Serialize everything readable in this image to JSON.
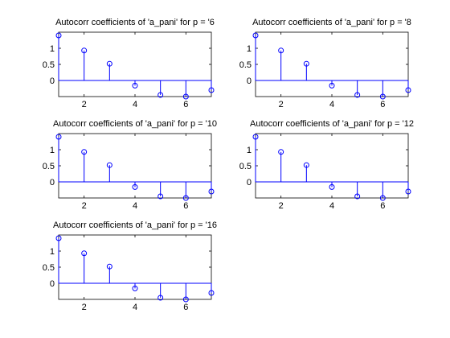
{
  "chart_data": [
    {
      "type": "stem",
      "title": "Autocorr coefficients of 'a_pani' for p = '6",
      "x": [
        1,
        2,
        3,
        4,
        5,
        6,
        7
      ],
      "values": [
        1.4,
        0.93,
        0.52,
        -0.16,
        -0.45,
        -0.5,
        -0.3
      ],
      "xlim": [
        1,
        7
      ],
      "ylim": [
        -0.5,
        1.5
      ],
      "xticks": [
        "2",
        "4",
        "6"
      ],
      "yticks": [
        "0",
        "0.5",
        "1"
      ],
      "xlabel": "",
      "ylabel": "",
      "grid": false,
      "marker": "circle",
      "color": "#0000ff"
    },
    {
      "type": "stem",
      "title": "Autocorr coefficients of 'a_pani' for p = '8",
      "x": [
        1,
        2,
        3,
        4,
        5,
        6,
        7
      ],
      "values": [
        1.4,
        0.93,
        0.52,
        -0.16,
        -0.45,
        -0.5,
        -0.3
      ],
      "xlim": [
        1,
        7
      ],
      "ylim": [
        -0.5,
        1.5
      ],
      "xticks": [
        "2",
        "4",
        "6"
      ],
      "yticks": [
        "0",
        "0.5",
        "1"
      ],
      "xlabel": "",
      "ylabel": "",
      "grid": false,
      "marker": "circle",
      "color": "#0000ff"
    },
    {
      "type": "stem",
      "title": "Autocorr coefficients of 'a_pani' for p = '10",
      "x": [
        1,
        2,
        3,
        4,
        5,
        6,
        7
      ],
      "values": [
        1.4,
        0.93,
        0.52,
        -0.16,
        -0.45,
        -0.5,
        -0.3
      ],
      "xlim": [
        1,
        7
      ],
      "ylim": [
        -0.5,
        1.5
      ],
      "xticks": [
        "2",
        "4",
        "6"
      ],
      "yticks": [
        "0",
        "0.5",
        "1"
      ],
      "xlabel": "",
      "ylabel": "",
      "grid": false,
      "marker": "circle",
      "color": "#0000ff"
    },
    {
      "type": "stem",
      "title": "Autocorr coefficients of 'a_pani' for p = '12",
      "x": [
        1,
        2,
        3,
        4,
        5,
        6,
        7
      ],
      "values": [
        1.4,
        0.93,
        0.52,
        -0.16,
        -0.45,
        -0.5,
        -0.3
      ],
      "xlim": [
        1,
        7
      ],
      "ylim": [
        -0.5,
        1.5
      ],
      "xticks": [
        "2",
        "4",
        "6"
      ],
      "yticks": [
        "0",
        "0.5",
        "1"
      ],
      "xlabel": "",
      "ylabel": "",
      "grid": false,
      "marker": "circle",
      "color": "#0000ff"
    },
    {
      "type": "stem",
      "title": "Autocorr coefficients of 'a_pani' for p = '16",
      "x": [
        1,
        2,
        3,
        4,
        5,
        6,
        7
      ],
      "values": [
        1.4,
        0.93,
        0.52,
        -0.16,
        -0.45,
        -0.5,
        -0.3
      ],
      "xlim": [
        1,
        7
      ],
      "ylim": [
        -0.5,
        1.5
      ],
      "xticks": [
        "2",
        "4",
        "6"
      ],
      "yticks": [
        "0",
        "0.5",
        "1"
      ],
      "xlabel": "",
      "ylabel": "",
      "grid": false,
      "marker": "circle",
      "color": "#0000ff"
    }
  ]
}
